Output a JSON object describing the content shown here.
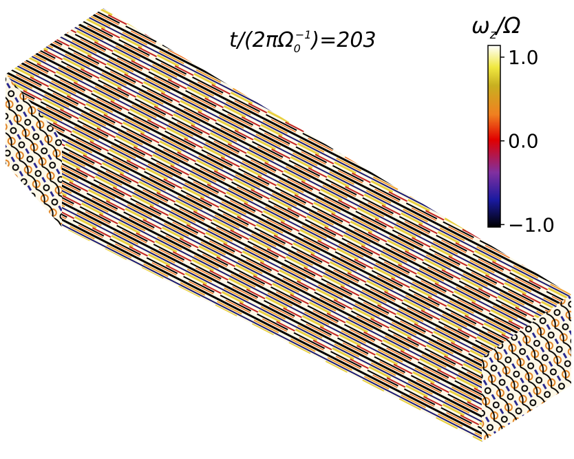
{
  "annotation": {
    "time": {
      "lead": "t/(2πΩ",
      "sub": "0",
      "sup": "−1",
      "tail": ")=203"
    }
  },
  "colorbar": {
    "label": {
      "symbol": "ω",
      "sub": "z",
      "tail": "/Ω"
    },
    "vlim": [
      -1.03,
      1.14
    ],
    "ticks": [
      {
        "value": 1,
        "label": "1.0"
      },
      {
        "value": 0,
        "label": "0.0"
      },
      {
        "value": -1,
        "label": "−1.0"
      }
    ]
  }
}
